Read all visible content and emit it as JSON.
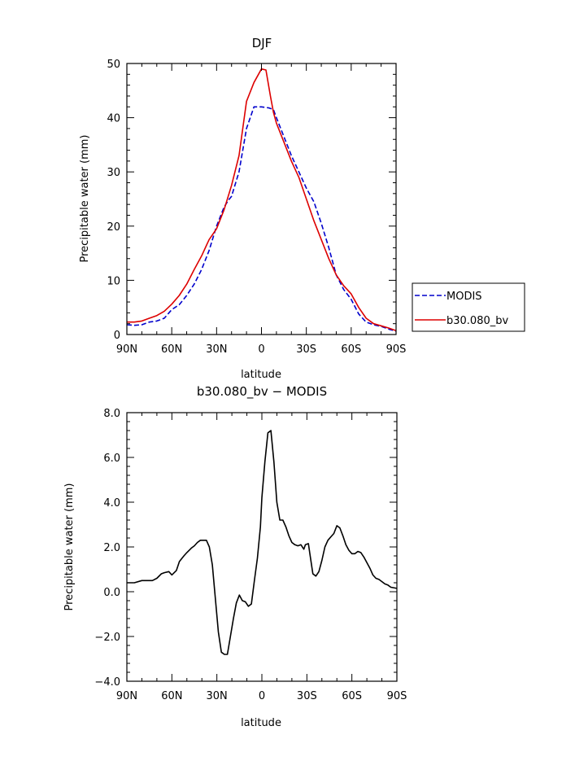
{
  "chart_data": [
    {
      "type": "line",
      "title": "DJF",
      "xlabel": "latitude",
      "ylabel": "Precipitable water (mm)",
      "xlim": [
        -90,
        90
      ],
      "ylim": [
        0,
        50
      ],
      "x_ticks": [
        -90,
        -60,
        -30,
        0,
        30,
        60,
        90
      ],
      "x_tick_labels": [
        "90N",
        "60N",
        "30N",
        "0",
        "30S",
        "60S",
        "90S"
      ],
      "y_ticks": [
        0,
        10,
        20,
        30,
        40,
        50
      ],
      "y_tick_labels": [
        "0",
        "10",
        "20",
        "30",
        "40",
        "50"
      ],
      "legend_position": "right",
      "series": [
        {
          "name": "MODIS",
          "color": "#0000cc",
          "dash": "dashed",
          "x": [
            -90,
            -85,
            -80,
            -75,
            -70,
            -65,
            -60,
            -55,
            -50,
            -45,
            -40,
            -35,
            -30,
            -25,
            -22,
            -20,
            -15,
            -10,
            -5,
            0,
            5,
            8,
            10,
            15,
            20,
            25,
            30,
            35,
            40,
            45,
            50,
            55,
            60,
            65,
            70,
            75,
            80,
            85,
            90
          ],
          "y": [
            1.8,
            1.7,
            1.8,
            2.3,
            2.5,
            3.0,
            4.6,
            5.5,
            7.2,
            9.3,
            12.0,
            15.5,
            20.0,
            23.5,
            24.8,
            25.5,
            30.0,
            38.0,
            42.0,
            42.0,
            41.8,
            41.5,
            40.0,
            36.5,
            33.0,
            30.0,
            27.0,
            24.5,
            20.5,
            16.0,
            11.0,
            8.3,
            6.5,
            3.8,
            2.3,
            1.8,
            1.5,
            1.0,
            0.6
          ]
        },
        {
          "name": "b30.080_bv",
          "color": "#dd0000",
          "dash": "solid",
          "x": [
            -90,
            -85,
            -80,
            -75,
            -70,
            -65,
            -60,
            -55,
            -50,
            -45,
            -40,
            -35,
            -30,
            -25,
            -20,
            -15,
            -10,
            -5,
            0,
            3,
            6,
            8,
            10,
            15,
            20,
            25,
            30,
            35,
            40,
            45,
            50,
            55,
            60,
            65,
            70,
            75,
            80,
            85,
            90
          ],
          "y": [
            2.3,
            2.3,
            2.5,
            3.0,
            3.5,
            4.3,
            5.6,
            7.2,
            9.3,
            12.0,
            14.5,
            17.5,
            19.5,
            23.0,
            27.5,
            33.0,
            43.0,
            46.5,
            49.0,
            48.8,
            44.0,
            41.0,
            39.0,
            35.5,
            32.0,
            29.0,
            25.0,
            21.0,
            17.5,
            14.0,
            11.0,
            9.0,
            7.5,
            5.0,
            3.0,
            2.0,
            1.6,
            1.2,
            0.7
          ]
        }
      ]
    },
    {
      "type": "line",
      "title": "b30.080_bv − MODIS",
      "xlabel": "latitude",
      "ylabel": "Precipitable water (mm)",
      "xlim": [
        -90,
        90
      ],
      "ylim": [
        -4,
        8
      ],
      "x_ticks": [
        -90,
        -60,
        -30,
        0,
        30,
        60,
        90
      ],
      "x_tick_labels": [
        "90N",
        "60N",
        "30N",
        "0",
        "30S",
        "60S",
        "90S"
      ],
      "y_ticks": [
        -4,
        -2,
        0,
        2,
        4,
        6,
        8
      ],
      "y_tick_labels": [
        "−4.0",
        "−2.0",
        "0.0",
        "2.0",
        "4.0",
        "6.0",
        "8.0"
      ],
      "series": [
        {
          "color": "#000000",
          "dash": "solid",
          "x": [
            -90,
            -85,
            -80,
            -76,
            -73,
            -70,
            -67,
            -65,
            -62,
            -60,
            -57,
            -55,
            -52,
            -50,
            -47,
            -45,
            -43,
            -41,
            -39,
            -37,
            -35,
            -33,
            -31,
            -29,
            -27,
            -25,
            -23,
            -21,
            -19,
            -17,
            -15,
            -13,
            -11,
            -9,
            -7,
            -5,
            -3,
            -1,
            0,
            2,
            4,
            6,
            8,
            10,
            12,
            14,
            16,
            18,
            20,
            22,
            24,
            26,
            28,
            29,
            31,
            32,
            34,
            36,
            38,
            40,
            42,
            44,
            46,
            48,
            50,
            52,
            54,
            56,
            58,
            60,
            62,
            64,
            66,
            68,
            70,
            72,
            74,
            76,
            78,
            80,
            82,
            84,
            86,
            90
          ],
          "y": [
            0.4,
            0.4,
            0.5,
            0.5,
            0.5,
            0.6,
            0.8,
            0.85,
            0.9,
            0.75,
            0.95,
            1.35,
            1.6,
            1.75,
            1.95,
            2.05,
            2.2,
            2.3,
            2.3,
            2.3,
            2.0,
            1.2,
            -0.3,
            -1.8,
            -2.7,
            -2.8,
            -2.8,
            -2.0,
            -1.2,
            -0.5,
            -0.15,
            -0.4,
            -0.45,
            -0.65,
            -0.55,
            0.5,
            1.5,
            2.9,
            4.2,
            5.8,
            7.1,
            7.2,
            5.8,
            4.0,
            3.2,
            3.2,
            2.9,
            2.5,
            2.2,
            2.1,
            2.05,
            2.1,
            1.9,
            2.1,
            2.15,
            1.7,
            0.8,
            0.7,
            0.9,
            1.4,
            2.0,
            2.3,
            2.45,
            2.6,
            2.95,
            2.85,
            2.5,
            2.1,
            1.85,
            1.7,
            1.7,
            1.8,
            1.75,
            1.55,
            1.3,
            1.05,
            0.75,
            0.6,
            0.55,
            0.45,
            0.35,
            0.3,
            0.2,
            0.15
          ]
        }
      ]
    }
  ]
}
